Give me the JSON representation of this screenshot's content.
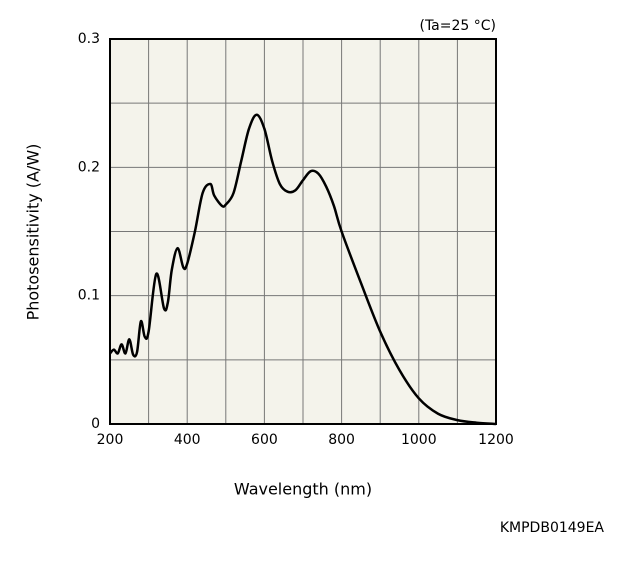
{
  "chart_data": {
    "type": "line",
    "annotation": "(Ta=25 °C)",
    "footer": "KMPDB0149EA",
    "xlabel": "Wavelength (nm)",
    "ylabel": "Photosensitivity (A/W)",
    "x": [
      200,
      210,
      220,
      230,
      240,
      250,
      260,
      270,
      280,
      290,
      300,
      320,
      340,
      350,
      360,
      375,
      390,
      400,
      420,
      440,
      460,
      470,
      490,
      500,
      520,
      540,
      560,
      580,
      600,
      620,
      640,
      660,
      680,
      700,
      720,
      740,
      760,
      780,
      800,
      850,
      900,
      950,
      1000,
      1050,
      1100,
      1150,
      1200
    ],
    "series": [
      {
        "name": "Photosensitivity",
        "color": "#000000",
        "values": [
          0.055,
          0.058,
          0.055,
          0.062,
          0.055,
          0.066,
          0.054,
          0.056,
          0.08,
          0.068,
          0.072,
          0.117,
          0.09,
          0.095,
          0.12,
          0.137,
          0.122,
          0.125,
          0.15,
          0.18,
          0.187,
          0.178,
          0.17,
          0.171,
          0.18,
          0.205,
          0.23,
          0.241,
          0.23,
          0.205,
          0.187,
          0.181,
          0.182,
          0.19,
          0.197,
          0.195,
          0.185,
          0.17,
          0.15,
          0.11,
          0.072,
          0.042,
          0.02,
          0.008,
          0.003,
          0.001,
          0
        ]
      }
    ],
    "xlim": [
      200,
      1200
    ],
    "ylim": [
      0,
      0.3
    ],
    "xticks": [
      200,
      400,
      600,
      800,
      1000,
      1200
    ],
    "yticks": [
      0,
      0.1,
      0.2,
      0.3
    ],
    "xminor": [
      300,
      500,
      700,
      900,
      1100
    ],
    "yminor": [
      0.05,
      0.15,
      0.25
    ],
    "grid": true,
    "plot_bg": "#f4f3eb"
  }
}
